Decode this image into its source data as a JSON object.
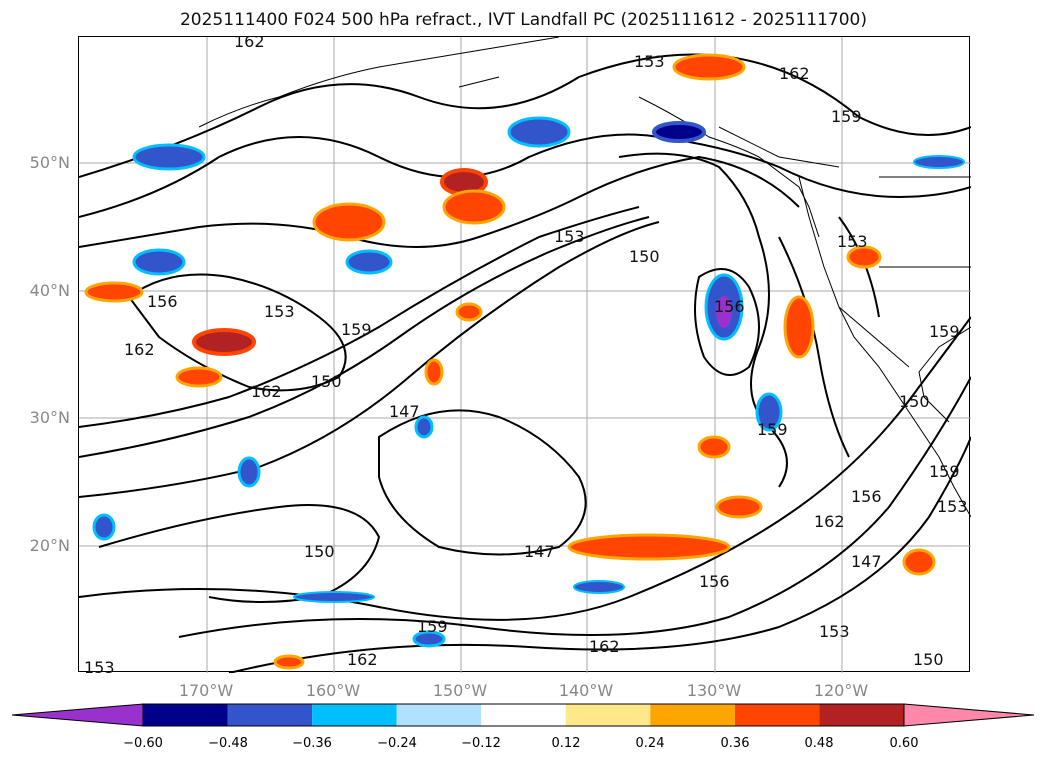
{
  "title": "2025111400 F024 500 hPa refract., IVT Landfall PC (2025111612 - 2025111700)",
  "lat_labels": [
    "50°N",
    "40°N",
    "30°N",
    "20°N"
  ],
  "lon_labels": [
    "170°W",
    "160°W",
    "150°W",
    "140°W",
    "130°W",
    "120°W"
  ],
  "colorbar": {
    "ticks": [
      "−0.60",
      "−0.48",
      "−0.36",
      "−0.24",
      "−0.12",
      "0.12",
      "0.24",
      "0.36",
      "0.48",
      "0.60"
    ],
    "colors": {
      "under": "#9932cc",
      "b1": "#00008b",
      "b2": "#3355cc",
      "b3": "#00bfff",
      "b4": "#b0e2ff",
      "b5": "#ffffff",
      "b6": "#ffe88a",
      "b7": "#ffa500",
      "b8": "#ff4500",
      "b9": "#b22222",
      "over": "#ff88aa"
    }
  },
  "contour_labels": [
    "162",
    "162",
    "159",
    "153",
    "150",
    "147",
    "153",
    "156",
    "162",
    "159",
    "162",
    "150",
    "156",
    "153",
    "159",
    "147",
    "159",
    "150",
    "156",
    "162",
    "153",
    "159",
    "150",
    "153",
    "159",
    "162",
    "147",
    "150",
    "153",
    "156",
    "162",
    "153"
  ]
}
